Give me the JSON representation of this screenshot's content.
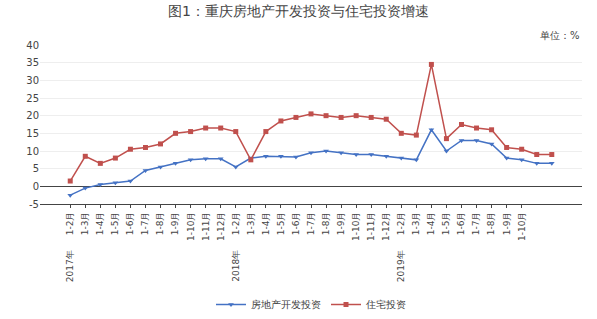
{
  "chart_data": {
    "type": "line",
    "title": "图1：重庆房地产开发投资与住宅投资增速",
    "categories": [
      "1-2月",
      "1-3月",
      "1-4月",
      "1-5月",
      "1-6月",
      "1-7月",
      "1-8月",
      "1-9月",
      "1-10月",
      "1-11月",
      "1-12月",
      "1-2月",
      "1-3月",
      "1-4月",
      "1-5月",
      "1-6月",
      "1-7月",
      "1-8月",
      "1-9月",
      "1-10月",
      "1-11月",
      "1-12月",
      "1-2月",
      "1-3月",
      "1-4月",
      "1-5月",
      "1-6月",
      "1-7月",
      "1-8月",
      "1-9月",
      "1-10月",
      null,
      null
    ],
    "series": [
      {
        "name": "房地产开发投资",
        "color": "#4472C4",
        "marker": "triangle-down",
        "values": [
          -2.5,
          -0.5,
          0.5,
          1.0,
          1.5,
          4.5,
          5.5,
          6.5,
          7.5,
          7.8,
          7.8,
          5.5,
          8.0,
          8.5,
          8.5,
          8.3,
          9.5,
          10.0,
          9.5,
          9.0,
          9.0,
          8.5,
          8.0,
          7.5,
          16.0,
          10.0,
          13.0,
          13.0,
          12.0,
          8.0,
          7.5,
          6.5,
          6.5
        ]
      },
      {
        "name": "住宅投资",
        "color": "#C0504D",
        "marker": "square",
        "values": [
          1.5,
          8.5,
          6.5,
          8.0,
          10.5,
          11.0,
          12.0,
          15.0,
          15.5,
          16.5,
          16.5,
          15.5,
          7.5,
          15.5,
          18.5,
          19.5,
          20.5,
          20.0,
          19.5,
          20.0,
          19.5,
          19.0,
          15.0,
          14.5,
          34.5,
          13.5,
          17.5,
          16.5,
          16.0,
          11.0,
          10.5,
          9.0,
          9.0
        ]
      }
    ],
    "annotations": [
      {
        "text": "单位：%"
      },
      {
        "text": "2017年",
        "x": 0
      },
      {
        "text": "2018年",
        "x": 11
      },
      {
        "text": "2019年",
        "x": 22
      }
    ],
    "ylim": [
      -5,
      40
    ],
    "yticks": [
      -5,
      0,
      5,
      10,
      15,
      20,
      25,
      30,
      35,
      40
    ],
    "grid": true,
    "legend": "bottom"
  }
}
